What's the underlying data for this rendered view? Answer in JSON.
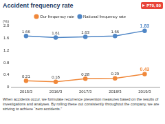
{
  "chart_data": {
    "type": "line",
    "title": "Accident frequency rate",
    "annotations": [
      "P70, 80",
      "When accidents occur, we formulate recurrence prevention measures based on the results of investigations and analyses. By rolling these out consistently throughout the company, we are striving to achieve “zero accidents.”"
    ],
    "ylabel": "(%)",
    "categories": [
      "2015/3",
      "2016/3",
      "2017/3",
      "2018/3",
      "2019/3"
    ],
    "series": [
      {
        "name": "Our frequency rate",
        "color": "#f0883a",
        "marker": "circle",
        "values": [
          0.21,
          0.18,
          0.28,
          0.29,
          0.43
        ]
      },
      {
        "name": "National frequency rate",
        "color": "#4f86c6",
        "marker": "circle",
        "values": [
          1.66,
          1.61,
          1.63,
          1.66,
          1.83
        ]
      }
    ],
    "ylim": [
      0,
      2
    ],
    "yticks": [
      0,
      0.4,
      0.8,
      1.2,
      1.6,
      {
        "value": 2,
        "label": "2.0"
      }
    ],
    "grid": false,
    "legend": "top",
    "data_labels": true
  }
}
